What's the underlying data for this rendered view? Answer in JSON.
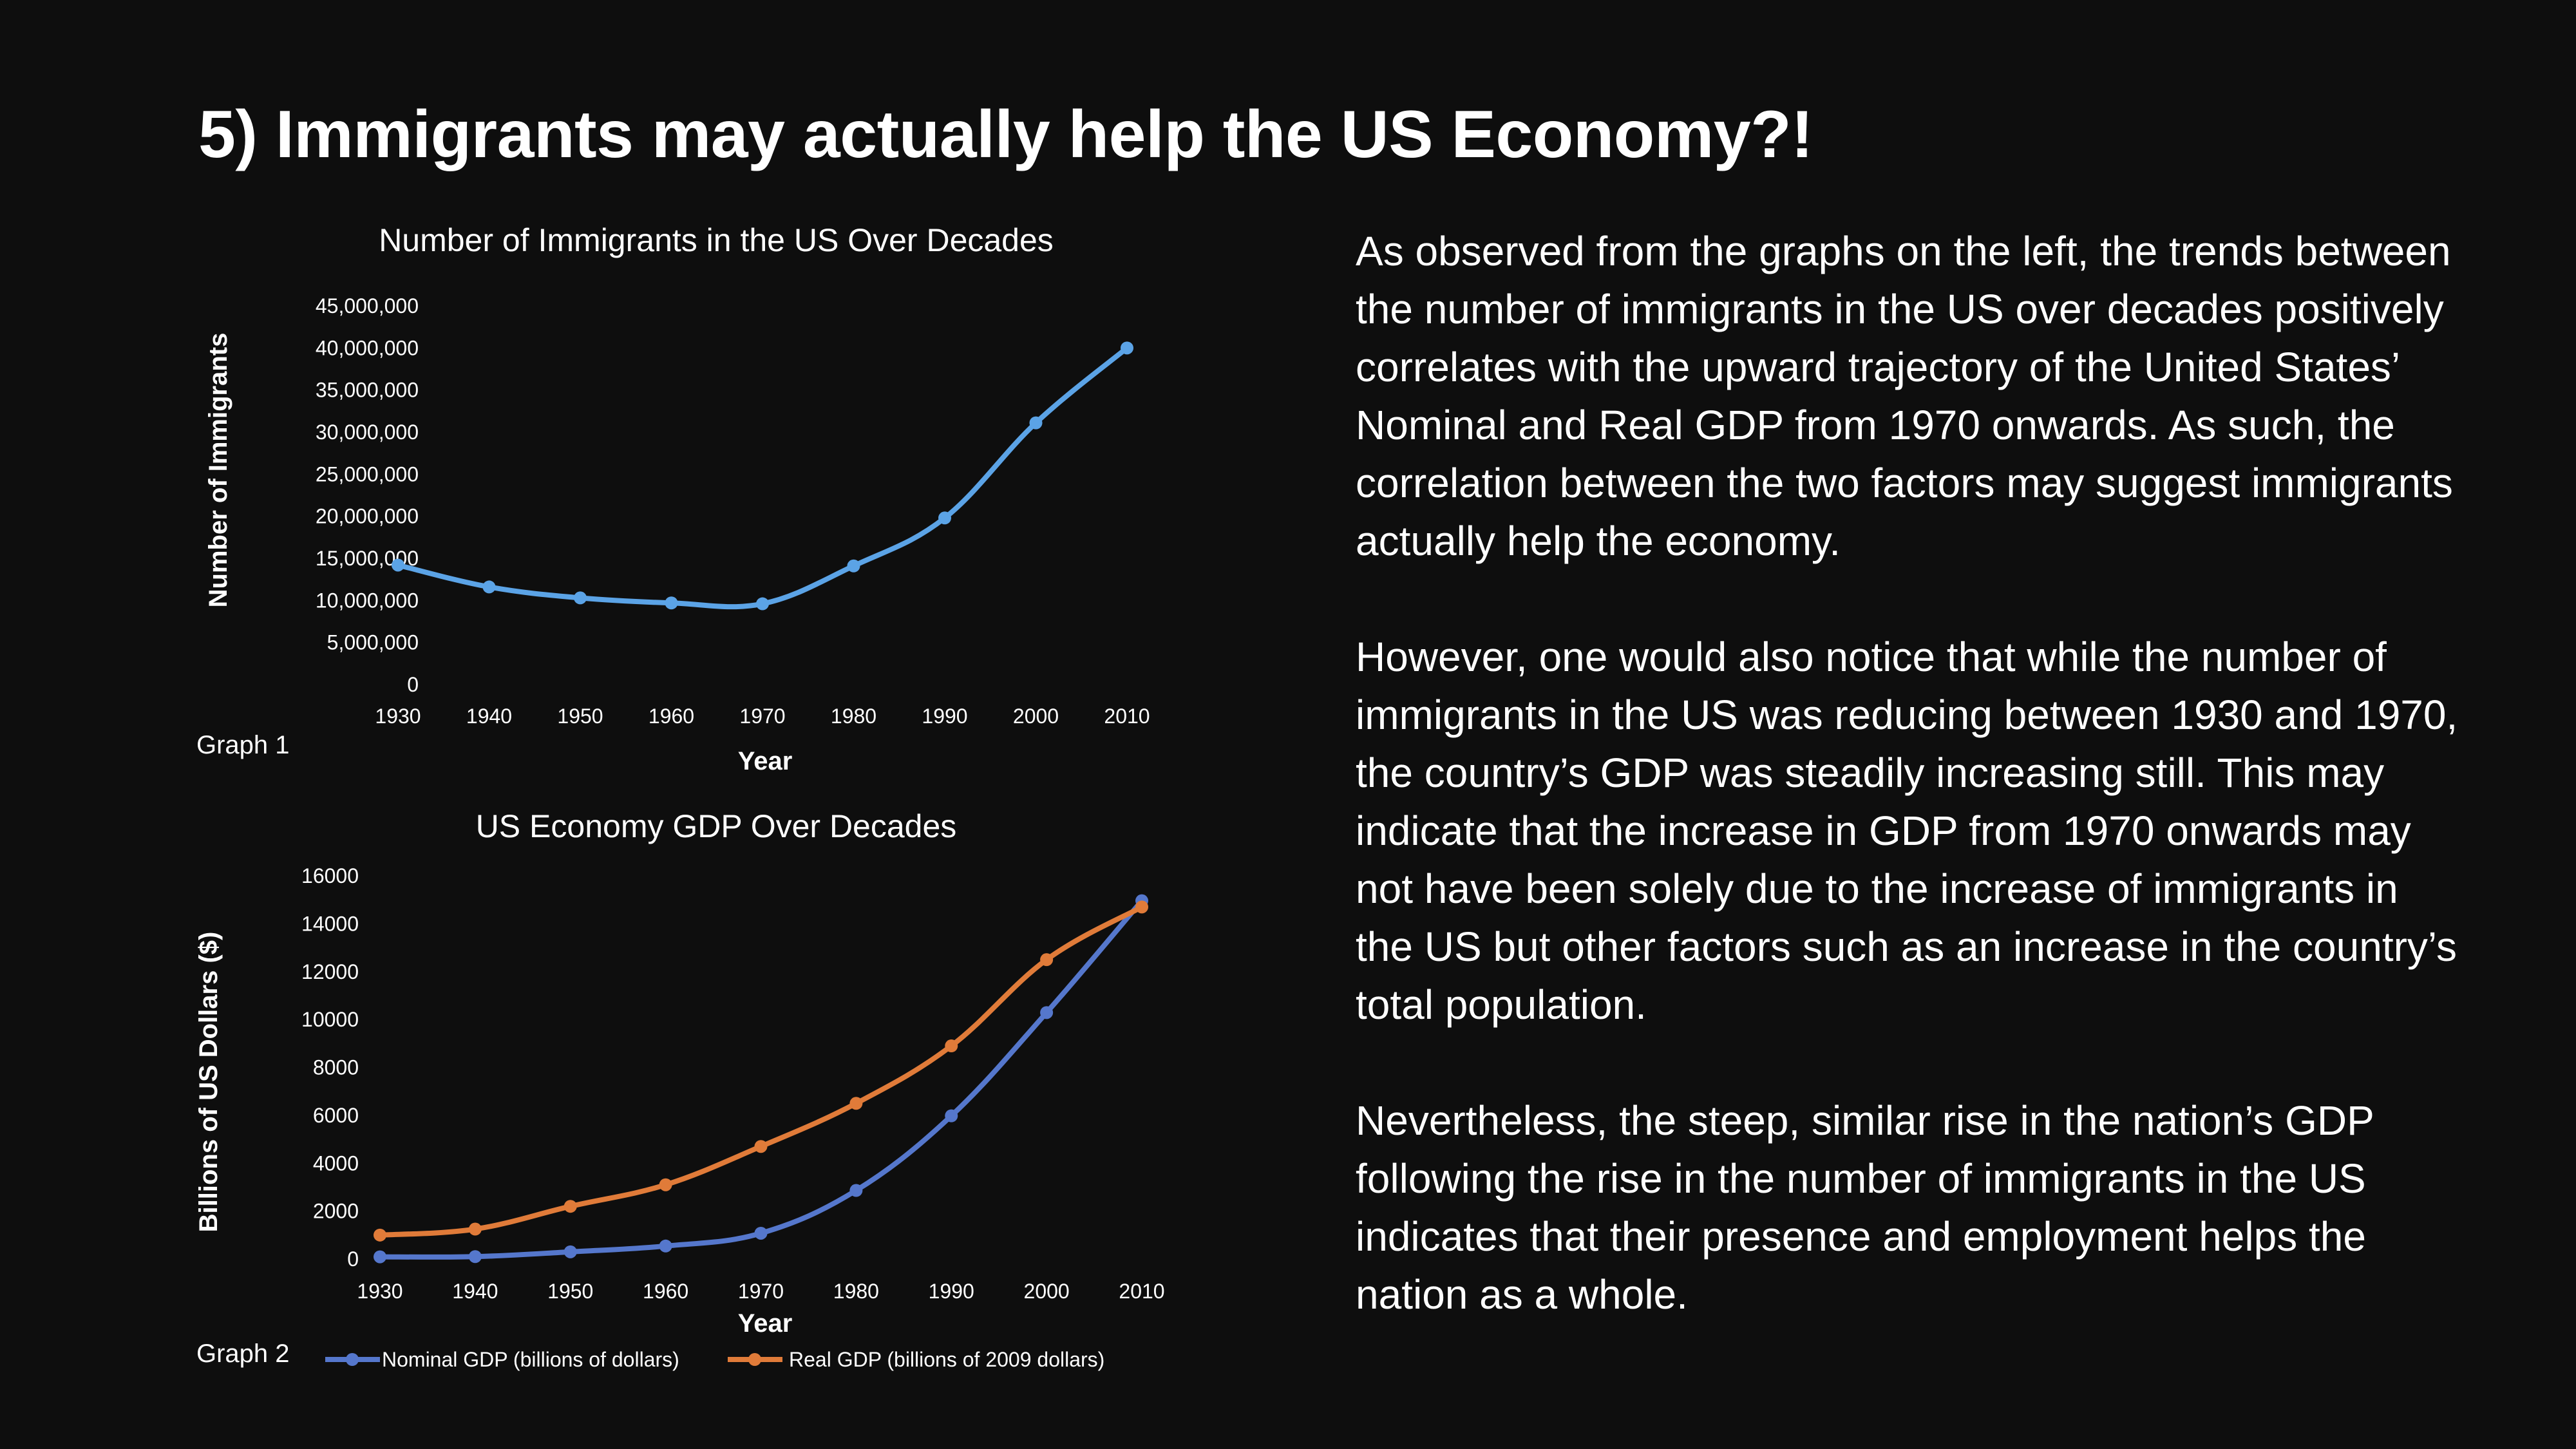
{
  "slide": {
    "title": "5) Immigrants may actually help the US Economy?!",
    "paragraphs": [
      "As observed from the graphs on the left, the trends between the number of immigrants in the US over decades positively correlates with the upward trajectory of the United States’ Nominal and Real GDP from 1970 onwards. As such, the correlation between the two factors may suggest immigrants actually help the economy.",
      "However, one would also notice that while the number of immigrants in the US was reducing between 1930 and 1970, the country’s GDP was steadily increasing still. This may indicate that the increase in GDP from 1970 onwards may not have been solely due to the increase of immigrants in the US but other factors such as an increase in the country’s total population.",
      "Nevertheless, the steep, similar rise in the nation’s GDP following the rise in the number of immigrants in the US indicates that their presence and employment helps the nation as a whole."
    ]
  },
  "chart_data": [
    {
      "type": "line",
      "tag": "Graph 1",
      "title": "Number of Immigrants in the US Over Decades",
      "xlabel": "Year",
      "ylabel": "Number of Immigrants",
      "x": [
        "1930",
        "1940",
        "1950",
        "1960",
        "1970",
        "1980",
        "1990",
        "2000",
        "2010"
      ],
      "ylim": [
        0,
        45000000
      ],
      "yticks": [
        "0",
        "5,000,000",
        "10,000,000",
        "15,000,000",
        "20,000,000",
        "25,000,000",
        "30,000,000",
        "35,000,000",
        "40,000,000",
        "45,000,000"
      ],
      "grid": false,
      "series": [
        {
          "color": "#5ba3e6",
          "values": [
            14200000,
            11600000,
            10300000,
            9700000,
            9600000,
            14100000,
            19800000,
            31100000,
            40000000
          ]
        }
      ]
    },
    {
      "type": "line",
      "tag": "Graph 2",
      "title": "US Economy GDP Over Decades",
      "xlabel": "Year",
      "ylabel": "Billions of US Dollars ($)",
      "x": [
        "1930",
        "1940",
        "1950",
        "1960",
        "1970",
        "1980",
        "1990",
        "2000",
        "2010"
      ],
      "ylim": [
        0,
        16000
      ],
      "yticks": [
        "0",
        "2000",
        "4000",
        "6000",
        "8000",
        "10000",
        "12000",
        "14000",
        "16000"
      ],
      "grid": false,
      "legend": "bottom",
      "series": [
        {
          "name": "Nominal GDP (billions of dollars)",
          "color": "#5577cc",
          "values": [
            92,
            101,
            300,
            543,
            1076,
            2863,
            5980,
            10290,
            14960
          ]
        },
        {
          "name": "Real GDP (billions of 2009 dollars)",
          "color": "#e07b39",
          "values": [
            1000,
            1250,
            2200,
            3100,
            4700,
            6500,
            8900,
            12500,
            14700
          ]
        }
      ]
    }
  ]
}
